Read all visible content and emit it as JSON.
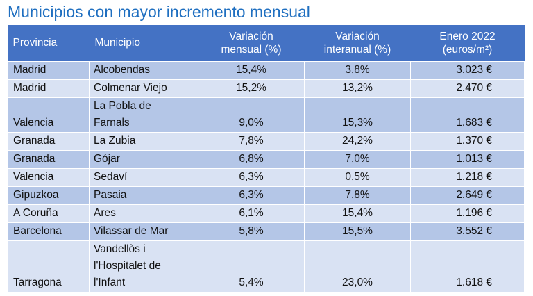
{
  "title": "Municipios con mayor incremento mensual",
  "table": {
    "headers": {
      "provincia": "Provincia",
      "municipio": "Municipio",
      "var_mensual_1": "Variación",
      "var_mensual_2": "mensual (%)",
      "var_interanual_1": "Variación",
      "var_interanual_2": "interanual (%)",
      "enero_1": "Enero 2022",
      "enero_2": "(euros/m²)"
    },
    "rows": [
      {
        "provincia": "Madrid",
        "municipio": [
          "Alcobendas"
        ],
        "mensual": "15,4%",
        "interanual": "3,8%",
        "enero": "3.023 €"
      },
      {
        "provincia": "Madrid",
        "municipio": [
          "Colmenar Viejo"
        ],
        "mensual": "15,2%",
        "interanual": "13,2%",
        "enero": "2.470 €"
      },
      {
        "provincia": "Valencia",
        "municipio": [
          "La Pobla de",
          "Farnals"
        ],
        "mensual": "9,0%",
        "interanual": "15,3%",
        "enero": "1.683 €"
      },
      {
        "provincia": "Granada",
        "municipio": [
          "La Zubia"
        ],
        "mensual": "7,8%",
        "interanual": "24,2%",
        "enero": "1.370 €"
      },
      {
        "provincia": "Granada",
        "municipio": [
          "Gójar"
        ],
        "mensual": "6,8%",
        "interanual": "7,0%",
        "enero": "1.013 €"
      },
      {
        "provincia": "Valencia",
        "municipio": [
          "Sedaví"
        ],
        "mensual": "6,3%",
        "interanual": "0,5%",
        "enero": "1.218 €"
      },
      {
        "provincia": "Gipuzkoa",
        "municipio": [
          "Pasaia"
        ],
        "mensual": "6,3%",
        "interanual": "7,8%",
        "enero": "2.649 €"
      },
      {
        "provincia": "A Coruña",
        "municipio": [
          "Ares"
        ],
        "mensual": "6,1%",
        "interanual": "15,4%",
        "enero": "1.196 €"
      },
      {
        "provincia": "Barcelona",
        "municipio": [
          "Vilassar de Mar"
        ],
        "mensual": "5,8%",
        "interanual": "15,5%",
        "enero": "3.552 €"
      },
      {
        "provincia": "Tarragona",
        "municipio": [
          "Vandellòs i",
          "l'Hospitalet de",
          "l'Infant"
        ],
        "mensual": "5,4%",
        "interanual": "23,0%",
        "enero": "1.618 €"
      }
    ]
  }
}
